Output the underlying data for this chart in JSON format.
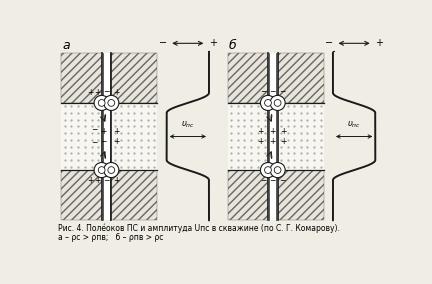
{
  "title_a": "a",
  "title_b": "б",
  "caption_line1": "Рис. 4. Поле́оков ПС и амплитуда Uпс в скважине (по С. Г. Комарову).",
  "caption_line2": "а – ρс > ρпв;   б – ρпв > ρс",
  "bg_color": "#f0ede5",
  "line_color": "#1a1a1a",
  "hatch_face": "#e8e4da",
  "mid_face": "#f0ede5"
}
